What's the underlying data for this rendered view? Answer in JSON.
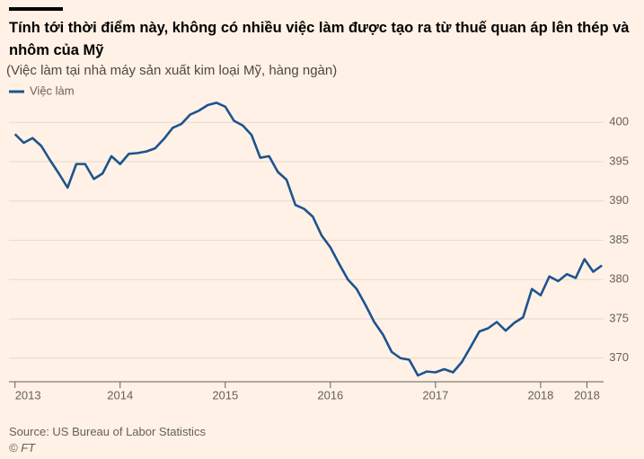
{
  "chart_data": {
    "type": "line",
    "title": "Tính tới thời điểm này, không có nhiều việc làm được tạo ra từ thuế quan áp lên thép và nhôm của Mỹ",
    "subtitle": "(Việc làm tại nhà máy sản xuất kim loại Mỹ, hàng ngàn)",
    "source": "Source: US Bureau of Labor Statistics",
    "credit": "© FT",
    "x": [
      2013.0,
      2013.083,
      2013.167,
      2013.25,
      2013.333,
      2013.417,
      2013.5,
      2013.583,
      2013.667,
      2013.75,
      2013.833,
      2013.917,
      2014.0,
      2014.083,
      2014.167,
      2014.25,
      2014.333,
      2014.417,
      2014.5,
      2014.583,
      2014.667,
      2014.75,
      2014.833,
      2014.917,
      2015.0,
      2015.083,
      2015.167,
      2015.25,
      2015.333,
      2015.417,
      2015.5,
      2015.583,
      2015.667,
      2015.75,
      2015.833,
      2015.917,
      2016.0,
      2016.083,
      2016.167,
      2016.25,
      2016.333,
      2016.417,
      2016.5,
      2016.583,
      2016.667,
      2016.75,
      2016.833,
      2016.917,
      2017.0,
      2017.083,
      2017.167,
      2017.25,
      2017.333,
      2017.417,
      2017.5,
      2017.583,
      2017.667,
      2017.75,
      2017.833,
      2017.917,
      2018.0,
      2018.083,
      2018.167,
      2018.25,
      2018.333,
      2018.417,
      2018.5,
      2018.583
    ],
    "series": [
      {
        "name": "Việc làm",
        "color": "#1d5390",
        "values": [
          398.5,
          397.4,
          398.0,
          397.0,
          395.2,
          393.5,
          391.7,
          394.7,
          394.7,
          392.8,
          393.5,
          395.7,
          394.7,
          396.0,
          396.1,
          396.3,
          396.7,
          397.9,
          399.3,
          399.8,
          401.0,
          401.5,
          402.2,
          402.5,
          402.0,
          400.2,
          399.6,
          398.4,
          395.5,
          395.7,
          393.7,
          392.7,
          389.5,
          389.0,
          388.0,
          385.6,
          384.1,
          382.0,
          380.0,
          378.8,
          376.8,
          374.6,
          373.0,
          370.8,
          370.0,
          369.8,
          367.8,
          368.3,
          368.2,
          368.6,
          368.2,
          369.5,
          371.4,
          373.4,
          373.8,
          374.6,
          373.5,
          374.5,
          375.2,
          378.8,
          378.0,
          380.4,
          379.8,
          380.7,
          380.2,
          382.6,
          381.0,
          381.8
        ]
      }
    ],
    "xlim": [
      2012.9,
      2018.65
    ],
    "xticks": [
      2013,
      2014,
      2015,
      2016,
      2017,
      2018,
      {
        "value": 2018.44,
        "label": "2018"
      }
    ],
    "ylim": [
      367,
      403
    ],
    "yticks": [
      370,
      375,
      380,
      385,
      390,
      395,
      400
    ],
    "grid": true,
    "legend": "top-left"
  }
}
